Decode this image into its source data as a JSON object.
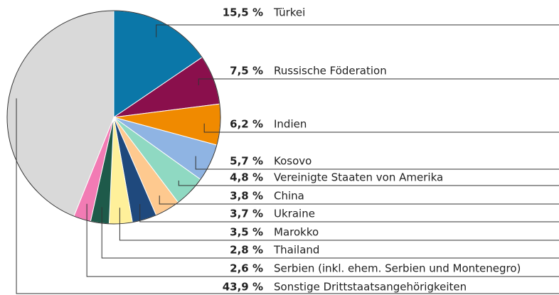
{
  "chart_data": {
    "type": "pie",
    "categories": [
      "Türkei",
      "Russische Föderation",
      "Indien",
      "Kosovo",
      "Vereinigte Staaten von Amerika",
      "China",
      "Ukraine",
      "Marokko",
      "Thailand",
      "Serbien (inkl. ehem. Serbien und Montenegro)",
      "Sonstige Drittstaatsangehörigkeiten"
    ],
    "values": [
      15.5,
      7.5,
      6.2,
      5.7,
      4.8,
      3.8,
      3.7,
      3.5,
      2.8,
      2.6,
      43.9
    ],
    "value_labels": [
      "15,5 %",
      "7,5 %",
      "6,2 %",
      "5,7 %",
      "4,8 %",
      "3,8 %",
      "3,7 %",
      "3,5 %",
      "2,8 %",
      "2,6 %",
      "43,9 %"
    ],
    "colors": [
      "#0b77a8",
      "#8a0f4c",
      "#f08a00",
      "#8fb4e3",
      "#8fd9c2",
      "#fec98f",
      "#1f497d",
      "#fff09a",
      "#1e5a4a",
      "#f27bb4",
      "#d9d9d9"
    ]
  }
}
